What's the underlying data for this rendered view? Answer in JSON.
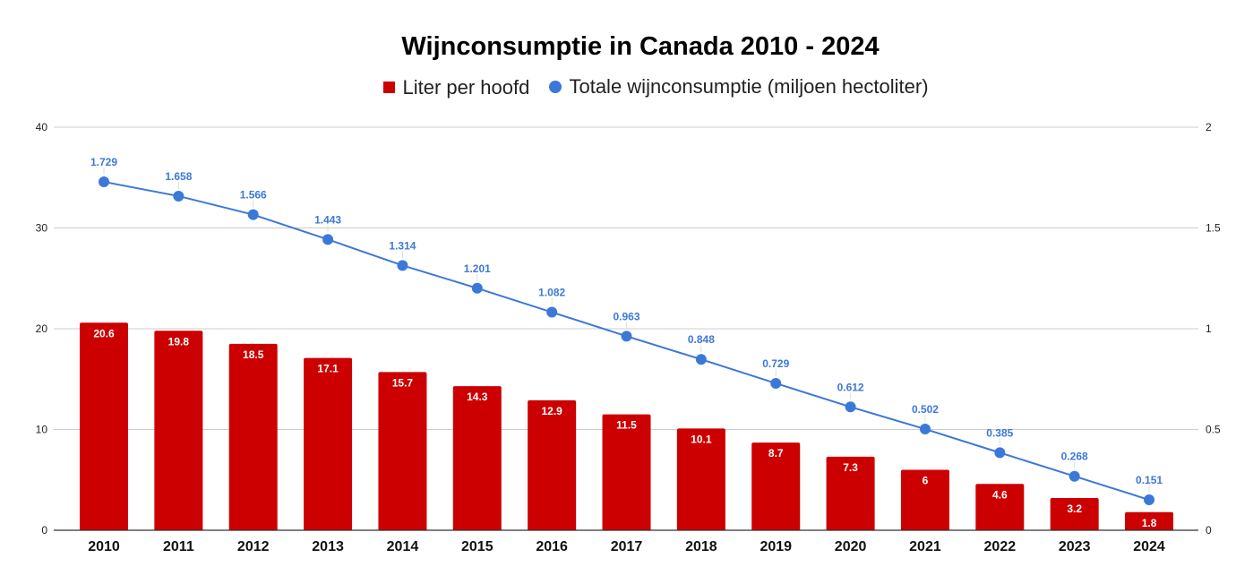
{
  "chart_data": {
    "type": "bar+line",
    "title": "Wijnconsumptie in Canada 2010 - 2024",
    "categories": [
      "2010",
      "2011",
      "2012",
      "2013",
      "2014",
      "2015",
      "2016",
      "2017",
      "2018",
      "2019",
      "2020",
      "2021",
      "2022",
      "2023",
      "2024"
    ],
    "series": [
      {
        "name": "Liter per hoofd",
        "type": "bar",
        "axis": "left",
        "color": "#cc0000",
        "values": [
          20.6,
          19.8,
          18.5,
          17.1,
          15.7,
          14.3,
          12.9,
          11.5,
          10.1,
          8.7,
          7.3,
          6,
          4.6,
          3.2,
          1.8
        ]
      },
      {
        "name": "Totale wijnconsumptie (miljoen hectoliter)",
        "type": "line",
        "axis": "right",
        "color": "#3c78d8",
        "values": [
          1.729,
          1.658,
          1.566,
          1.443,
          1.314,
          1.201,
          1.082,
          0.963,
          0.848,
          0.729,
          0.612,
          0.502,
          0.385,
          0.268,
          0.151
        ]
      }
    ],
    "left_axis": {
      "ylim": [
        0,
        40
      ],
      "ticks": [
        "0",
        "10",
        "20",
        "30",
        "40"
      ]
    },
    "right_axis": {
      "ylim": [
        0,
        2
      ],
      "ticks": [
        "0",
        "0.5",
        "1",
        "1.5",
        "2"
      ]
    },
    "grid": true,
    "legend_position": "top"
  }
}
